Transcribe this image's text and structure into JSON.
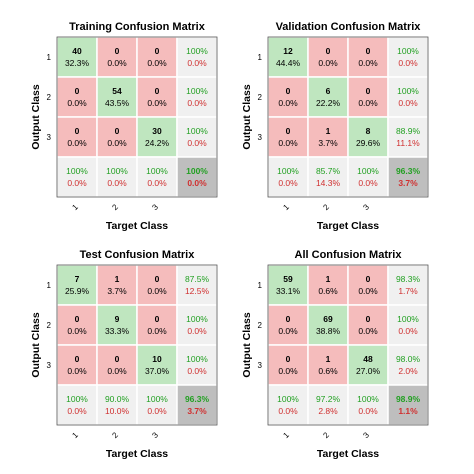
{
  "colors": {
    "correct": "#bfe6bf",
    "incorrect": "#f5bcbc",
    "summary": "#f0f0f0",
    "total": "#bebebe",
    "good": "#22a022",
    "bad": "#d03030"
  },
  "chart_data": [
    {
      "type": "heatmap",
      "title": "Training Confusion Matrix",
      "xlabel": "Target Class",
      "ylabel": "Output Class",
      "classes": [
        "1",
        "2",
        "3"
      ],
      "cells": [
        [
          {
            "count": "40",
            "pct": "32.3%"
          },
          {
            "count": "0",
            "pct": "0.0%"
          },
          {
            "count": "0",
            "pct": "0.0%"
          }
        ],
        [
          {
            "count": "0",
            "pct": "0.0%"
          },
          {
            "count": "54",
            "pct": "43.5%"
          },
          {
            "count": "0",
            "pct": "0.0%"
          }
        ],
        [
          {
            "count": "0",
            "pct": "0.0%"
          },
          {
            "count": "0",
            "pct": "0.0%"
          },
          {
            "count": "30",
            "pct": "24.2%"
          }
        ]
      ],
      "row_summary": [
        {
          "good": "100%",
          "bad": "0.0%"
        },
        {
          "good": "100%",
          "bad": "0.0%"
        },
        {
          "good": "100%",
          "bad": "0.0%"
        }
      ],
      "col_summary": [
        {
          "good": "100%",
          "bad": "0.0%"
        },
        {
          "good": "100%",
          "bad": "0.0%"
        },
        {
          "good": "100%",
          "bad": "0.0%"
        }
      ],
      "total": {
        "good": "100%",
        "bad": "0.0%"
      }
    },
    {
      "type": "heatmap",
      "title": "Validation Confusion Matrix",
      "xlabel": "Target Class",
      "ylabel": "Output Class",
      "classes": [
        "1",
        "2",
        "3"
      ],
      "cells": [
        [
          {
            "count": "12",
            "pct": "44.4%"
          },
          {
            "count": "0",
            "pct": "0.0%"
          },
          {
            "count": "0",
            "pct": "0.0%"
          }
        ],
        [
          {
            "count": "0",
            "pct": "0.0%"
          },
          {
            "count": "6",
            "pct": "22.2%"
          },
          {
            "count": "0",
            "pct": "0.0%"
          }
        ],
        [
          {
            "count": "0",
            "pct": "0.0%"
          },
          {
            "count": "1",
            "pct": "3.7%"
          },
          {
            "count": "8",
            "pct": "29.6%"
          }
        ]
      ],
      "row_summary": [
        {
          "good": "100%",
          "bad": "0.0%"
        },
        {
          "good": "100%",
          "bad": "0.0%"
        },
        {
          "good": "88.9%",
          "bad": "11.1%"
        }
      ],
      "col_summary": [
        {
          "good": "100%",
          "bad": "0.0%"
        },
        {
          "good": "85.7%",
          "bad": "14.3%"
        },
        {
          "good": "100%",
          "bad": "0.0%"
        }
      ],
      "total": {
        "good": "96.3%",
        "bad": "3.7%"
      }
    },
    {
      "type": "heatmap",
      "title": "Test Confusion Matrix",
      "xlabel": "Target Class",
      "ylabel": "Output Class",
      "classes": [
        "1",
        "2",
        "3"
      ],
      "cells": [
        [
          {
            "count": "7",
            "pct": "25.9%"
          },
          {
            "count": "1",
            "pct": "3.7%"
          },
          {
            "count": "0",
            "pct": "0.0%"
          }
        ],
        [
          {
            "count": "0",
            "pct": "0.0%"
          },
          {
            "count": "9",
            "pct": "33.3%"
          },
          {
            "count": "0",
            "pct": "0.0%"
          }
        ],
        [
          {
            "count": "0",
            "pct": "0.0%"
          },
          {
            "count": "0",
            "pct": "0.0%"
          },
          {
            "count": "10",
            "pct": "37.0%"
          }
        ]
      ],
      "row_summary": [
        {
          "good": "87.5%",
          "bad": "12.5%"
        },
        {
          "good": "100%",
          "bad": "0.0%"
        },
        {
          "good": "100%",
          "bad": "0.0%"
        }
      ],
      "col_summary": [
        {
          "good": "100%",
          "bad": "0.0%"
        },
        {
          "good": "90.0%",
          "bad": "10.0%"
        },
        {
          "good": "100%",
          "bad": "0.0%"
        }
      ],
      "total": {
        "good": "96.3%",
        "bad": "3.7%"
      }
    },
    {
      "type": "heatmap",
      "title": "All Confusion Matrix",
      "xlabel": "Target Class",
      "ylabel": "Output Class",
      "classes": [
        "1",
        "2",
        "3"
      ],
      "cells": [
        [
          {
            "count": "59",
            "pct": "33.1%"
          },
          {
            "count": "1",
            "pct": "0.6%"
          },
          {
            "count": "0",
            "pct": "0.0%"
          }
        ],
        [
          {
            "count": "0",
            "pct": "0.0%"
          },
          {
            "count": "69",
            "pct": "38.8%"
          },
          {
            "count": "0",
            "pct": "0.0%"
          }
        ],
        [
          {
            "count": "0",
            "pct": "0.0%"
          },
          {
            "count": "1",
            "pct": "0.6%"
          },
          {
            "count": "48",
            "pct": "27.0%"
          }
        ]
      ],
      "row_summary": [
        {
          "good": "98.3%",
          "bad": "1.7%"
        },
        {
          "good": "100%",
          "bad": "0.0%"
        },
        {
          "good": "98.0%",
          "bad": "2.0%"
        }
      ],
      "col_summary": [
        {
          "good": "100%",
          "bad": "0.0%"
        },
        {
          "good": "97.2%",
          "bad": "2.8%"
        },
        {
          "good": "100%",
          "bad": "0.0%"
        }
      ],
      "total": {
        "good": "98.9%",
        "bad": "1.1%"
      }
    }
  ]
}
